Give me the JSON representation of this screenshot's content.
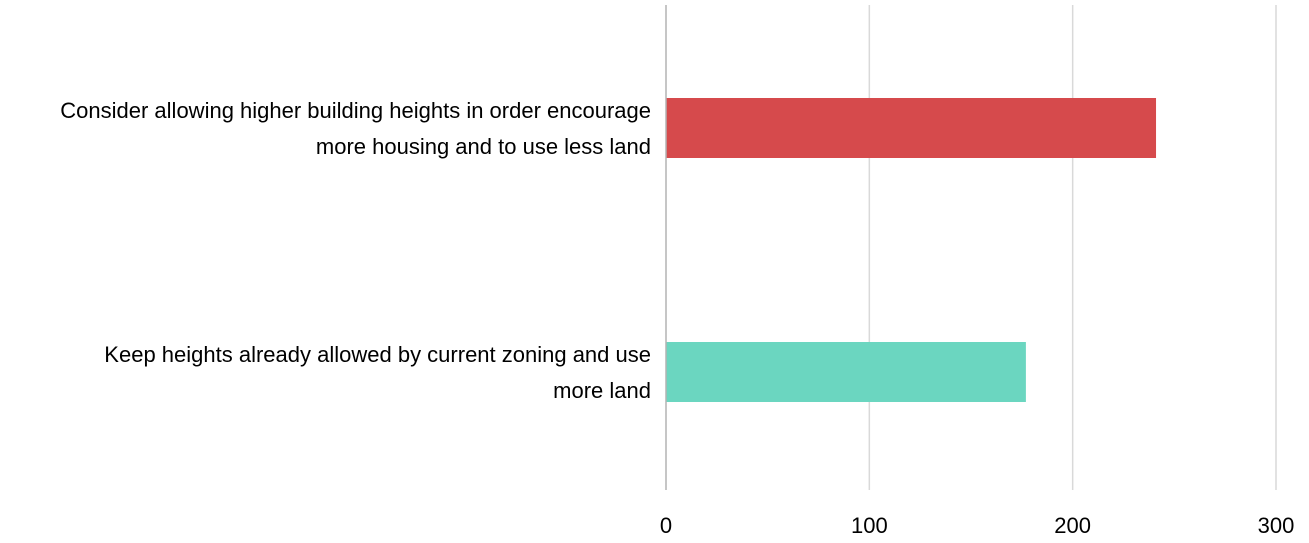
{
  "chart_data": {
    "type": "bar",
    "orientation": "horizontal",
    "categories": [
      "Consider allowing higher building heights in order encourage more housing and to use less land",
      "Keep heights already allowed by current zoning and use more land"
    ],
    "category_lines": [
      [
        "Consider allowing higher building heights in order encourage",
        "more housing and to use less land"
      ],
      [
        "Keep heights already allowed by current zoning and use",
        "more land"
      ]
    ],
    "values": [
      241,
      177
    ],
    "colors": [
      "#d64a4c",
      "#6bd6c0"
    ],
    "xlim": [
      0,
      300
    ],
    "xticks": [
      0,
      100,
      200,
      300
    ],
    "xtick_labels": [
      "0",
      "100",
      "200",
      "300"
    ],
    "grid": true,
    "title": "",
    "xlabel": "",
    "ylabel": ""
  }
}
